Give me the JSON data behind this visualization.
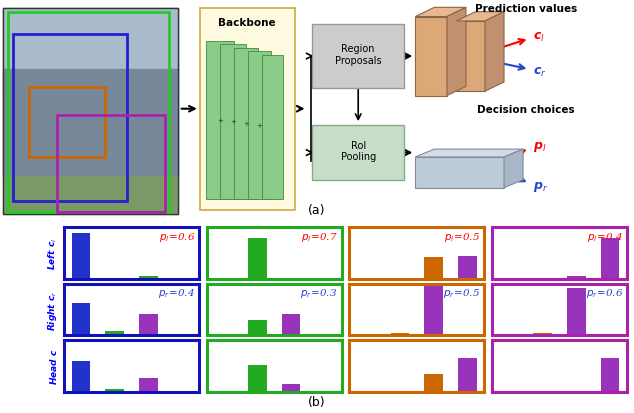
{
  "fig_width": 6.34,
  "fig_height": 4.14,
  "dpi": 100,
  "caption_a": "(a)",
  "caption_b": "(b)",
  "backbone_label": "Backbone",
  "region_proposals_label": "Region\nProposals",
  "roi_pooling_label": "RoI\nPooling",
  "prediction_values_label": "Prediction values",
  "decision_choices_label": "Decision choices",
  "border_colors": [
    "#1111bb",
    "#22aa22",
    "#cc6600",
    "#aa22aa"
  ],
  "bar_colors": {
    "blue": "#2233cc",
    "green": "#22aa22",
    "orange": "#cc6600",
    "purple": "#9933bb"
  },
  "backbone_bg": "#fffbe0",
  "region_proposals_bg": "#cccccc",
  "roi_pooling_bg": "#c8ddc8",
  "nn_color": "#dda878",
  "decision_color": "#b8bbd0",
  "col_pl_labels": [
    "p_l=0.6",
    "p_l=0.7",
    "p_l=0.5",
    "p_l=0.4"
  ],
  "col_pr_labels": [
    "p_r=0.4",
    "p_r=0.3",
    "p_r=0.5",
    "p_r=0.6"
  ],
  "bar_data": {
    "r0c0": [
      [
        0,
        0.88,
        "blue"
      ],
      [
        2,
        0.06,
        "green"
      ]
    ],
    "r0c1": [
      [
        1,
        0.78,
        "green"
      ]
    ],
    "r0c2": [
      [
        2,
        0.42,
        "orange"
      ],
      [
        3,
        0.45,
        "purple"
      ]
    ],
    "r0c3": [
      [
        2,
        0.05,
        "purple"
      ],
      [
        3,
        0.78,
        "purple"
      ]
    ],
    "r1c0": [
      [
        0,
        0.62,
        "blue"
      ],
      [
        1,
        0.08,
        "green"
      ],
      [
        2,
        0.42,
        "purple"
      ]
    ],
    "r1c1": [
      [
        1,
        0.3,
        "green"
      ],
      [
        2,
        0.42,
        "purple"
      ]
    ],
    "r1c2": [
      [
        1,
        0.05,
        "orange"
      ],
      [
        2,
        0.95,
        "purple"
      ]
    ],
    "r1c3": [
      [
        1,
        0.05,
        "orange"
      ],
      [
        2,
        0.92,
        "purple"
      ]
    ],
    "r2c0": [
      [
        0,
        0.6,
        "blue"
      ],
      [
        1,
        0.05,
        "green"
      ],
      [
        2,
        0.26,
        "purple"
      ]
    ],
    "r2c1": [
      [
        1,
        0.52,
        "green"
      ],
      [
        2,
        0.16,
        "purple"
      ]
    ],
    "r2c2": [
      [
        2,
        0.35,
        "orange"
      ],
      [
        3,
        0.65,
        "purple"
      ]
    ],
    "r2c3": [
      [
        3,
        0.65,
        "purple"
      ]
    ]
  }
}
